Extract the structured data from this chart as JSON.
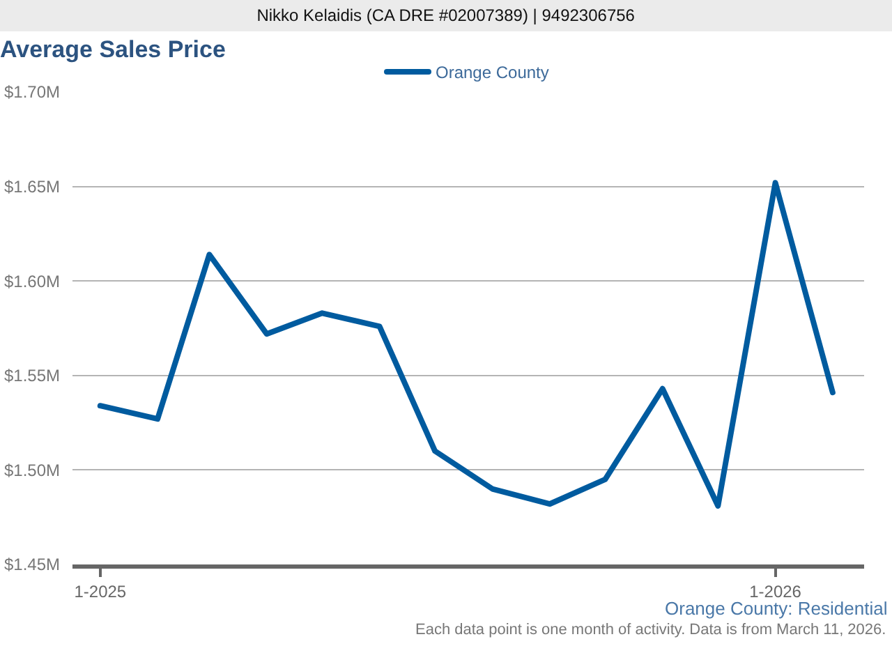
{
  "chart_data": {
    "type": "line",
    "title": "Average Sales Price",
    "subtitle": "Orange County: Residential",
    "annotations": [
      "Nikko Kelaidis (CA DRE #02007389) | 9492306756",
      "Each data point is one month of activity. Data is from March 11, 2026."
    ],
    "x": [
      "2025-01",
      "2025-02",
      "2025-03",
      "2025-04",
      "2025-05",
      "2025-06",
      "2025-07",
      "2025-08",
      "2025-09",
      "2025-10",
      "2025-11",
      "2025-12",
      "2026-01",
      "2026-02"
    ],
    "series": [
      {
        "name": "Orange County",
        "color": "#005b9f",
        "values": [
          1.534,
          1.527,
          1.614,
          1.572,
          1.583,
          1.576,
          1.51,
          1.49,
          1.482,
          1.495,
          1.543,
          1.481,
          1.652,
          1.541
        ]
      }
    ],
    "xlim": [
      "2024-12-17",
      "2026-02-18"
    ],
    "xticks": [
      {
        "value": "2025-01",
        "label": "1-2025"
      },
      {
        "value": "2026-01",
        "label": "1-2026"
      }
    ],
    "ylim": [
      1.45,
      1.7
    ],
    "yticks": [
      {
        "value": 1.45,
        "label": "$1.45M"
      },
      {
        "value": 1.5,
        "label": "$1.50M"
      },
      {
        "value": 1.55,
        "label": "$1.55M"
      },
      {
        "value": 1.6,
        "label": "$1.60M"
      },
      {
        "value": 1.65,
        "label": "$1.65M"
      },
      {
        "value": 1.7,
        "label": "$1.70M"
      }
    ],
    "grid": "y",
    "legend": "top",
    "marker": "none",
    "line_style": "solid"
  }
}
